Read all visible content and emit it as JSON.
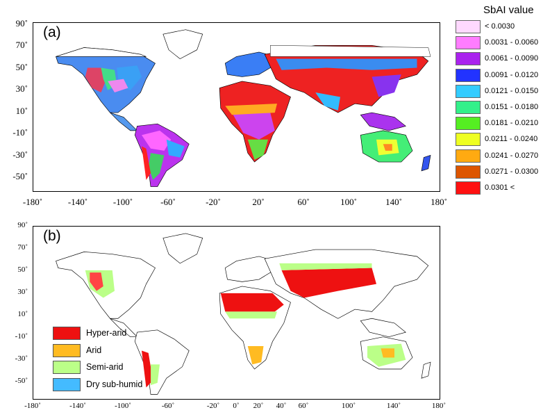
{
  "panel_a": {
    "label": "(a)",
    "y_ticks": [
      "90˚",
      "70˚",
      "50˚",
      "30˚",
      "10˚",
      "-10˚",
      "-30˚",
      "-50˚"
    ],
    "x_ticks": [
      "-180˚",
      "-140˚",
      "-100˚",
      "-60˚",
      "-20˚",
      "20˚",
      "60˚",
      "100˚",
      "140˚",
      "180˚"
    ]
  },
  "panel_b": {
    "label": "(b)",
    "y_ticks": [
      "90˚",
      "70˚",
      "50˚",
      "30˚",
      "10˚",
      "-10˚",
      "-30˚",
      "-50˚"
    ],
    "x_ticks": [
      "-180˚",
      "-140˚",
      "-100˚",
      "-60˚",
      "-20˚",
      "0˚",
      "20˚",
      "40˚",
      "60˚",
      "100˚",
      "140˚",
      "180˚"
    ]
  },
  "sbai_legend": {
    "title": "SbAI value",
    "items": [
      {
        "label": "< 0.0030",
        "color": "#ffd9ff"
      },
      {
        "label": "0.0031 - 0.0060",
        "color": "#ff7dff"
      },
      {
        "label": "0.0061 - 0.0090",
        "color": "#aa22ee"
      },
      {
        "label": "0.0091 - 0.0120",
        "color": "#2233ff"
      },
      {
        "label": "0.0121 - 0.0150",
        "color": "#33ccff"
      },
      {
        "label": "0.0151 - 0.0180",
        "color": "#33f08a"
      },
      {
        "label": "0.0181 - 0.0210",
        "color": "#55ee22"
      },
      {
        "label": "0.0211 - 0.0240",
        "color": "#eeff22"
      },
      {
        "label": "0.0241 - 0.0270",
        "color": "#ffaa11"
      },
      {
        "label": "0.0271 - 0.0300",
        "color": "#dd5500"
      },
      {
        "label": "0.0301 <",
        "color": "#ff1111"
      }
    ]
  },
  "class_legend": {
    "items": [
      {
        "label": "Hyper-arid",
        "color": "#ee1111"
      },
      {
        "label": "Arid",
        "color": "#ffbb22"
      },
      {
        "label": "Semi-arid",
        "color": "#bbff88"
      },
      {
        "label": "Dry sub-humid",
        "color": "#44bbff"
      }
    ]
  }
}
